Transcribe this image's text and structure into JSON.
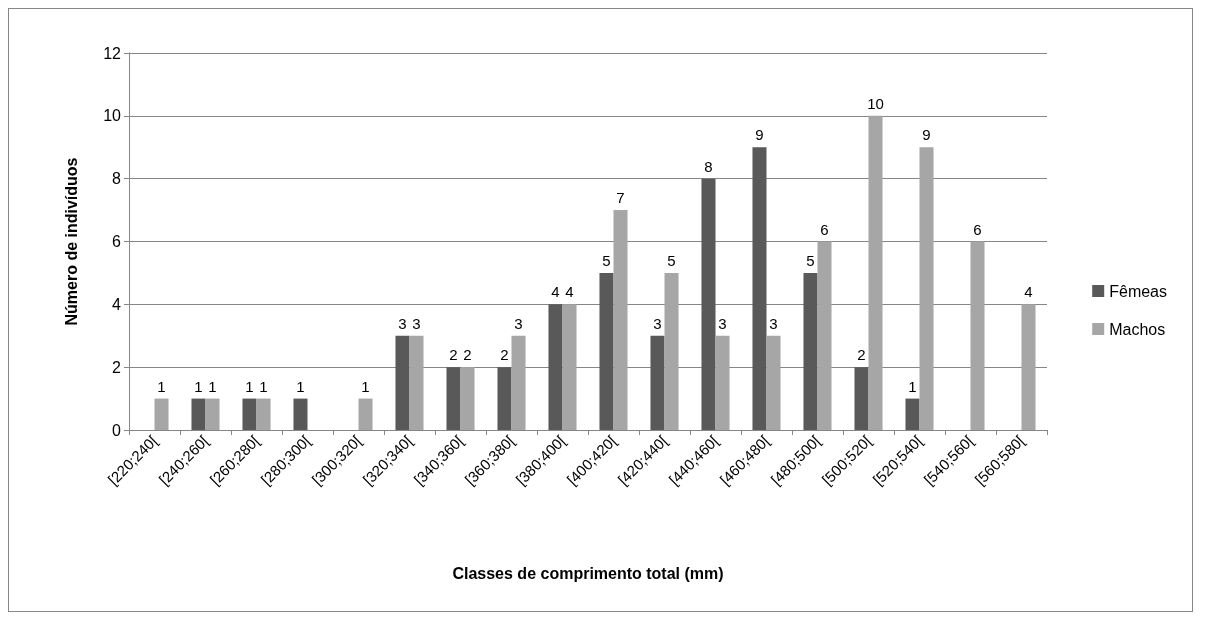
{
  "chart_data": {
    "type": "bar",
    "xlabel": "Classes de comprimento total (mm)",
    "ylabel": "Número de indivíduos",
    "categories": [
      "[220;240[",
      "[240;260[",
      "[260;280[",
      "[280;300[",
      "[300;320[",
      "[320;340[",
      "[340;360[",
      "[360;380[",
      "[380;400[",
      "[400;420[",
      "[420;440[",
      "[440;460[",
      "[460;480[",
      "[480;500[",
      "[500;520[",
      "[520;540[",
      "[540;560[",
      "[560;580["
    ],
    "series": [
      {
        "name": "Fêmeas",
        "color": "#595959",
        "values": [
          null,
          1,
          1,
          1,
          null,
          3,
          2,
          2,
          4,
          5,
          3,
          8,
          9,
          5,
          2,
          1,
          null,
          null
        ]
      },
      {
        "name": "Machos",
        "color": "#a6a6a6",
        "values": [
          1,
          1,
          1,
          null,
          1,
          3,
          2,
          3,
          4,
          7,
          5,
          3,
          3,
          6,
          10,
          9,
          6,
          4
        ]
      }
    ],
    "ylim": [
      0,
      12
    ],
    "yticks": [
      0,
      2,
      4,
      6,
      8,
      10,
      12
    ],
    "grid": "y",
    "legend": "right",
    "data_labels": true
  }
}
